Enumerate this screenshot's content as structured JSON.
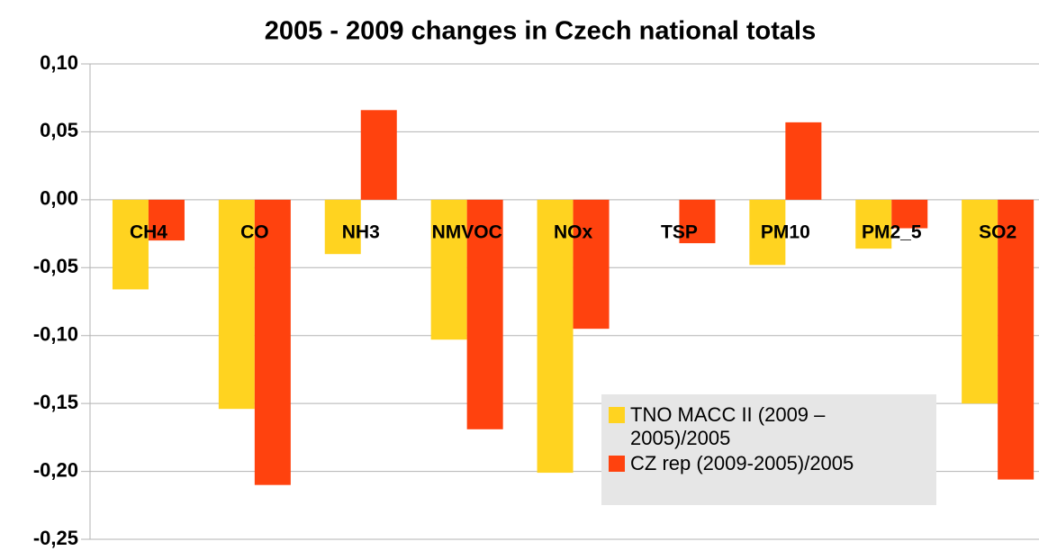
{
  "chart_data": {
    "type": "bar",
    "title": "2005 - 2009 changes in Czech national totals",
    "categories": [
      "CH4",
      "CO",
      "NH3",
      "NMVOC",
      "NOx",
      "TSP",
      "PM10",
      "PM2_5",
      "SO2"
    ],
    "series": [
      {
        "name": "TNO MACC II (2009 – 2005)/2005",
        "color": "#ffd320",
        "values": [
          -0.066,
          -0.154,
          -0.04,
          -0.103,
          -0.201,
          null,
          -0.048,
          -0.036,
          -0.15
        ]
      },
      {
        "name": "CZ rep (2009-2005)/2005",
        "color": "#ff420e",
        "values": [
          -0.03,
          -0.21,
          0.066,
          -0.169,
          -0.095,
          -0.032,
          0.057,
          -0.021,
          -0.206
        ]
      }
    ],
    "ylim": [
      -0.25,
      0.1
    ],
    "yticks": [
      {
        "value": -0.25,
        "label": "-0,25"
      },
      {
        "value": -0.2,
        "label": "-0,20"
      },
      {
        "value": -0.15,
        "label": "-0,15"
      },
      {
        "value": -0.1,
        "label": "-0,10"
      },
      {
        "value": -0.05,
        "label": "-0,05"
      },
      {
        "value": 0,
        "label": "0,00"
      },
      {
        "value": 0.05,
        "label": "0,05"
      },
      {
        "value": 0.1,
        "label": "0,10"
      }
    ],
    "grid": true
  }
}
